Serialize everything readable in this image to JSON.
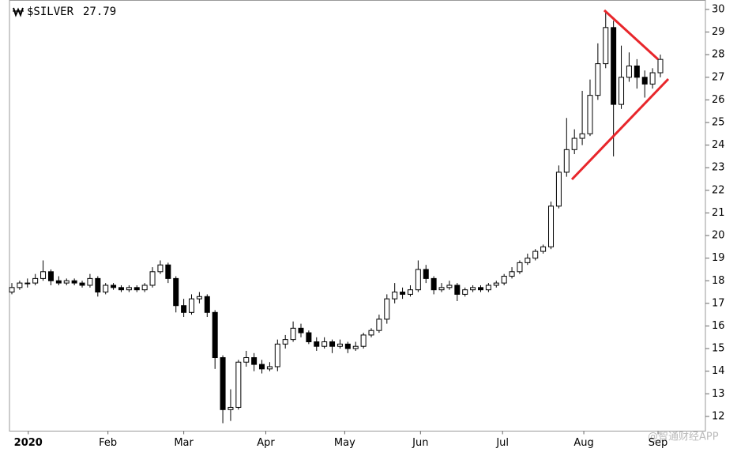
{
  "chart_data": {
    "type": "candlestick",
    "symbol": "$SILVER",
    "last_price": 27.79,
    "watermark": "@智通财经APP",
    "up_color": "#ffffff",
    "down_color": "#000000",
    "line_color": "#000000",
    "ylim": [
      11.35,
      30.4
    ],
    "yticks": [
      12,
      13,
      14,
      15,
      16,
      17,
      18,
      19,
      20,
      21,
      22,
      23,
      24,
      25,
      26,
      27,
      28,
      29,
      30
    ],
    "xticks": [
      {
        "value": 2.1,
        "label": "2020"
      },
      {
        "value": 12.3,
        "label": "Feb"
      },
      {
        "value": 22,
        "label": "Mar"
      },
      {
        "value": 32.5,
        "label": "Apr"
      },
      {
        "value": 42.6,
        "label": "May"
      },
      {
        "value": 52.3,
        "label": "Jun"
      },
      {
        "value": 62.8,
        "label": "Jul"
      },
      {
        "value": 73.2,
        "label": "Aug"
      },
      {
        "value": 82.7,
        "label": "Sep"
      }
    ],
    "grid": false,
    "open": [
      17.5,
      17.7,
      17.9,
      17.9,
      18.1,
      18.4,
      18.0,
      17.9,
      18.0,
      17.9,
      17.8,
      18.1,
      17.5,
      17.8,
      17.7,
      17.6,
      17.7,
      17.6,
      17.8,
      18.4,
      18.7,
      18.1,
      16.9,
      16.6,
      17.2,
      17.3,
      16.6,
      14.6,
      12.3,
      12.4,
      14.4,
      14.6,
      14.3,
      14.1,
      14.2,
      15.2,
      15.4,
      15.9,
      15.7,
      15.3,
      15.1,
      15.3,
      15.1,
      15.2,
      15.0,
      15.1,
      15.6,
      15.8,
      16.3,
      17.2,
      17.5,
      17.4,
      17.6,
      18.5,
      18.1,
      17.6,
      17.7,
      17.8,
      17.4,
      17.6,
      17.7,
      17.6,
      17.8,
      17.9,
      18.2,
      18.4,
      18.8,
      19.0,
      19.3,
      19.5,
      21.3,
      22.8,
      23.8,
      24.3,
      24.5,
      26.2,
      27.6,
      29.2,
      25.8,
      27.0,
      27.5,
      27.0,
      26.7,
      27.2
    ],
    "high": [
      17.9,
      18.0,
      18.1,
      18.3,
      18.9,
      18.5,
      18.2,
      18.1,
      18.1,
      18.0,
      18.3,
      18.2,
      17.9,
      17.9,
      17.8,
      17.8,
      17.8,
      17.9,
      18.6,
      18.9,
      18.8,
      18.2,
      17.2,
      17.4,
      17.5,
      17.4,
      16.7,
      14.7,
      13.2,
      14.5,
      14.9,
      14.8,
      14.5,
      14.4,
      15.4,
      15.6,
      16.2,
      16.1,
      15.8,
      15.5,
      15.5,
      15.4,
      15.4,
      15.3,
      15.3,
      15.7,
      15.9,
      16.5,
      17.4,
      17.9,
      17.7,
      17.8,
      18.9,
      18.7,
      18.2,
      17.9,
      18.0,
      17.9,
      17.7,
      17.8,
      17.8,
      17.9,
      18.0,
      18.3,
      18.6,
      18.9,
      19.2,
      19.4,
      19.6,
      21.5,
      23.1,
      25.2,
      24.7,
      26.4,
      26.9,
      28.5,
      29.9,
      29.5,
      28.4,
      28.1,
      27.8,
      27.3,
      27.4,
      28.0
    ],
    "low": [
      17.4,
      17.6,
      17.7,
      17.8,
      18.0,
      17.8,
      17.8,
      17.8,
      17.8,
      17.7,
      17.7,
      17.3,
      17.4,
      17.6,
      17.5,
      17.5,
      17.5,
      17.5,
      17.7,
      18.3,
      17.9,
      16.6,
      16.4,
      16.5,
      17.0,
      16.4,
      14.1,
      11.7,
      11.8,
      12.3,
      14.2,
      14.0,
      13.9,
      14.0,
      14.0,
      15.0,
      15.3,
      15.5,
      15.2,
      14.9,
      15.0,
      14.8,
      15.0,
      14.8,
      14.9,
      15.0,
      15.5,
      15.7,
      16.1,
      17.0,
      17.2,
      17.3,
      17.5,
      17.9,
      17.4,
      17.5,
      17.6,
      17.1,
      17.3,
      17.5,
      17.5,
      17.5,
      17.7,
      17.8,
      18.1,
      18.3,
      18.7,
      18.9,
      19.2,
      19.4,
      21.2,
      22.6,
      23.6,
      24.0,
      24.4,
      26.0,
      27.4,
      23.5,
      25.6,
      26.8,
      26.5,
      26.1,
      26.5,
      27.0
    ],
    "close": [
      17.7,
      17.9,
      17.9,
      18.1,
      18.4,
      18.0,
      17.9,
      18.0,
      17.9,
      17.8,
      18.1,
      17.5,
      17.8,
      17.7,
      17.6,
      17.7,
      17.6,
      17.8,
      18.4,
      18.7,
      18.1,
      16.9,
      16.6,
      17.2,
      17.3,
      16.6,
      14.6,
      12.3,
      12.4,
      14.4,
      14.6,
      14.3,
      14.1,
      14.2,
      15.2,
      15.4,
      15.9,
      15.7,
      15.3,
      15.1,
      15.3,
      15.1,
      15.2,
      15.0,
      15.1,
      15.6,
      15.8,
      16.3,
      17.2,
      17.5,
      17.4,
      17.6,
      18.5,
      18.1,
      17.6,
      17.7,
      17.8,
      17.4,
      17.6,
      17.7,
      17.6,
      17.8,
      17.9,
      18.2,
      18.4,
      18.8,
      19.0,
      19.3,
      19.5,
      21.3,
      22.8,
      23.8,
      24.3,
      24.5,
      26.2,
      27.6,
      29.2,
      25.8,
      27.0,
      27.5,
      27.0,
      26.7,
      27.2,
      27.79
    ]
  }
}
